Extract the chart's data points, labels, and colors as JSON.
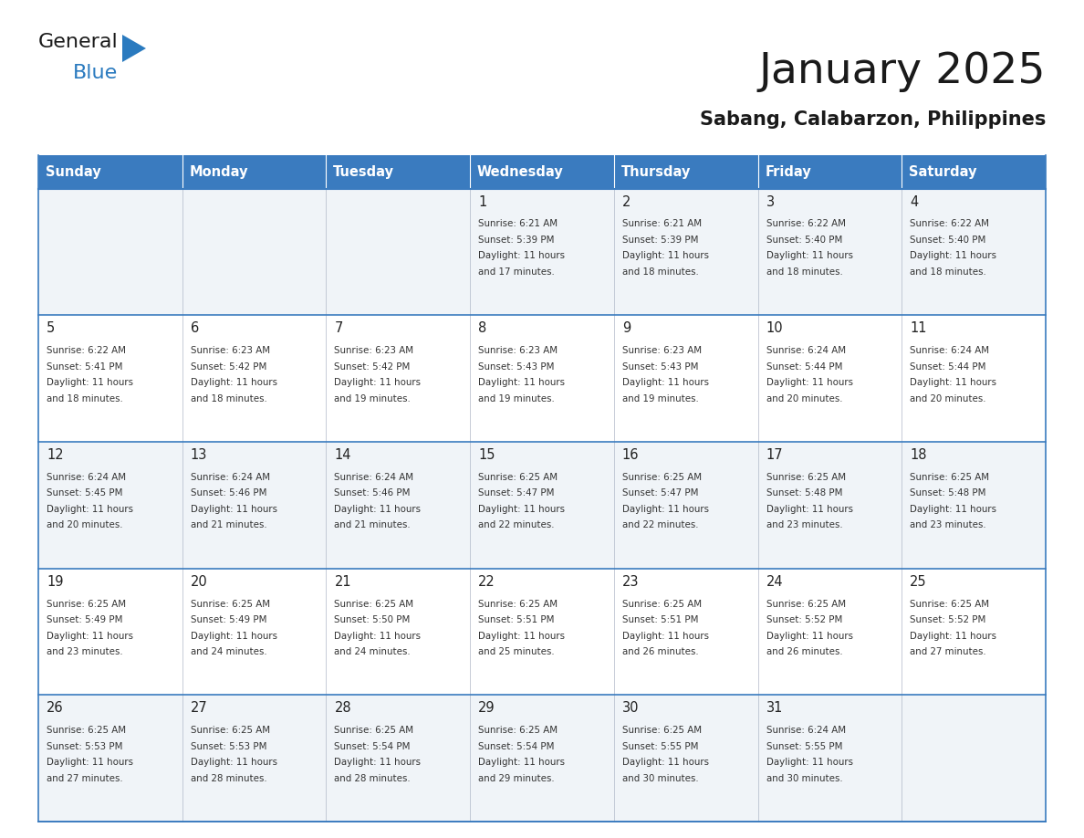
{
  "title": "January 2025",
  "subtitle": "Sabang, Calabarzon, Philippines",
  "days_of_week": [
    "Sunday",
    "Monday",
    "Tuesday",
    "Wednesday",
    "Thursday",
    "Friday",
    "Saturday"
  ],
  "header_bg": "#3a7bbf",
  "header_text": "#ffffff",
  "row_bg_odd": "#f0f4f8",
  "row_bg_even": "#ffffff",
  "cell_border_color": "#3a7bbf",
  "day_number_color": "#222222",
  "info_text_color": "#333333",
  "title_color": "#1a1a1a",
  "subtitle_color": "#1a1a1a",
  "logo_general_color": "#1a1a1a",
  "logo_blue_color": "#2a7abf",
  "logo_triangle_color": "#2a7abf",
  "calendar_data": [
    [
      {
        "day": null,
        "info": null
      },
      {
        "day": null,
        "info": null
      },
      {
        "day": null,
        "info": null
      },
      {
        "day": 1,
        "info": "Sunrise: 6:21 AM\nSunset: 5:39 PM\nDaylight: 11 hours\nand 17 minutes."
      },
      {
        "day": 2,
        "info": "Sunrise: 6:21 AM\nSunset: 5:39 PM\nDaylight: 11 hours\nand 18 minutes."
      },
      {
        "day": 3,
        "info": "Sunrise: 6:22 AM\nSunset: 5:40 PM\nDaylight: 11 hours\nand 18 minutes."
      },
      {
        "day": 4,
        "info": "Sunrise: 6:22 AM\nSunset: 5:40 PM\nDaylight: 11 hours\nand 18 minutes."
      }
    ],
    [
      {
        "day": 5,
        "info": "Sunrise: 6:22 AM\nSunset: 5:41 PM\nDaylight: 11 hours\nand 18 minutes."
      },
      {
        "day": 6,
        "info": "Sunrise: 6:23 AM\nSunset: 5:42 PM\nDaylight: 11 hours\nand 18 minutes."
      },
      {
        "day": 7,
        "info": "Sunrise: 6:23 AM\nSunset: 5:42 PM\nDaylight: 11 hours\nand 19 minutes."
      },
      {
        "day": 8,
        "info": "Sunrise: 6:23 AM\nSunset: 5:43 PM\nDaylight: 11 hours\nand 19 minutes."
      },
      {
        "day": 9,
        "info": "Sunrise: 6:23 AM\nSunset: 5:43 PM\nDaylight: 11 hours\nand 19 minutes."
      },
      {
        "day": 10,
        "info": "Sunrise: 6:24 AM\nSunset: 5:44 PM\nDaylight: 11 hours\nand 20 minutes."
      },
      {
        "day": 11,
        "info": "Sunrise: 6:24 AM\nSunset: 5:44 PM\nDaylight: 11 hours\nand 20 minutes."
      }
    ],
    [
      {
        "day": 12,
        "info": "Sunrise: 6:24 AM\nSunset: 5:45 PM\nDaylight: 11 hours\nand 20 minutes."
      },
      {
        "day": 13,
        "info": "Sunrise: 6:24 AM\nSunset: 5:46 PM\nDaylight: 11 hours\nand 21 minutes."
      },
      {
        "day": 14,
        "info": "Sunrise: 6:24 AM\nSunset: 5:46 PM\nDaylight: 11 hours\nand 21 minutes."
      },
      {
        "day": 15,
        "info": "Sunrise: 6:25 AM\nSunset: 5:47 PM\nDaylight: 11 hours\nand 22 minutes."
      },
      {
        "day": 16,
        "info": "Sunrise: 6:25 AM\nSunset: 5:47 PM\nDaylight: 11 hours\nand 22 minutes."
      },
      {
        "day": 17,
        "info": "Sunrise: 6:25 AM\nSunset: 5:48 PM\nDaylight: 11 hours\nand 23 minutes."
      },
      {
        "day": 18,
        "info": "Sunrise: 6:25 AM\nSunset: 5:48 PM\nDaylight: 11 hours\nand 23 minutes."
      }
    ],
    [
      {
        "day": 19,
        "info": "Sunrise: 6:25 AM\nSunset: 5:49 PM\nDaylight: 11 hours\nand 23 minutes."
      },
      {
        "day": 20,
        "info": "Sunrise: 6:25 AM\nSunset: 5:49 PM\nDaylight: 11 hours\nand 24 minutes."
      },
      {
        "day": 21,
        "info": "Sunrise: 6:25 AM\nSunset: 5:50 PM\nDaylight: 11 hours\nand 24 minutes."
      },
      {
        "day": 22,
        "info": "Sunrise: 6:25 AM\nSunset: 5:51 PM\nDaylight: 11 hours\nand 25 minutes."
      },
      {
        "day": 23,
        "info": "Sunrise: 6:25 AM\nSunset: 5:51 PM\nDaylight: 11 hours\nand 26 minutes."
      },
      {
        "day": 24,
        "info": "Sunrise: 6:25 AM\nSunset: 5:52 PM\nDaylight: 11 hours\nand 26 minutes."
      },
      {
        "day": 25,
        "info": "Sunrise: 6:25 AM\nSunset: 5:52 PM\nDaylight: 11 hours\nand 27 minutes."
      }
    ],
    [
      {
        "day": 26,
        "info": "Sunrise: 6:25 AM\nSunset: 5:53 PM\nDaylight: 11 hours\nand 27 minutes."
      },
      {
        "day": 27,
        "info": "Sunrise: 6:25 AM\nSunset: 5:53 PM\nDaylight: 11 hours\nand 28 minutes."
      },
      {
        "day": 28,
        "info": "Sunrise: 6:25 AM\nSunset: 5:54 PM\nDaylight: 11 hours\nand 28 minutes."
      },
      {
        "day": 29,
        "info": "Sunrise: 6:25 AM\nSunset: 5:54 PM\nDaylight: 11 hours\nand 29 minutes."
      },
      {
        "day": 30,
        "info": "Sunrise: 6:25 AM\nSunset: 5:55 PM\nDaylight: 11 hours\nand 30 minutes."
      },
      {
        "day": 31,
        "info": "Sunrise: 6:24 AM\nSunset: 5:55 PM\nDaylight: 11 hours\nand 30 minutes."
      },
      {
        "day": null,
        "info": null
      }
    ]
  ]
}
